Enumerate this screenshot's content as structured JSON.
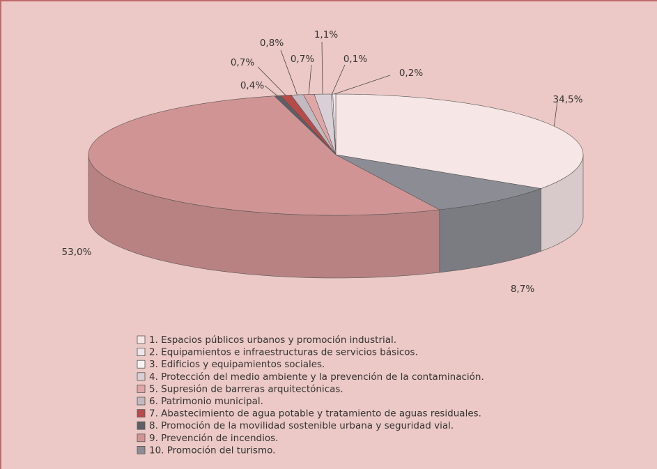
{
  "chart_data": {
    "type": "pie3d",
    "categories": [
      "1. Espacios públicos urbanos y promoción industrial.",
      "2. Equipamientos e infraestructuras de servicios básicos.",
      "3. Edificios y equipamientos sociales.",
      "4. Protección del medio ambiente y la prevención de la contaminación.",
      "5. Supresión de barreras arquitectónicas.",
      "6. Patrimonio municipal.",
      "7. Abastecimiento de agua potable y tratamiento de aguas residuales.",
      "8. Promoción de la movilidad sostenible urbana y seguridad vial.",
      "9. Prevención de incendios.",
      "10. Promoción del turismo."
    ],
    "values": [
      34.5,
      0.2,
      0.1,
      1.1,
      0.7,
      0.8,
      0.7,
      0.4,
      53.0,
      8.7
    ],
    "value_labels": [
      "34,5%",
      "0,2%",
      "0,1%",
      "1,1%",
      "0,7%",
      "0,8%",
      "0,7%",
      "0,4%",
      "53,0%",
      "8,7%"
    ],
    "colors": [
      "#f6e6e6",
      "#eee6ea",
      "#faf3f3",
      "#d8d0d6",
      "#e0a6a6",
      "#c2bac0",
      "#b84a4a",
      "#5e5e66",
      "#d19494",
      "#8c8c94"
    ]
  }
}
